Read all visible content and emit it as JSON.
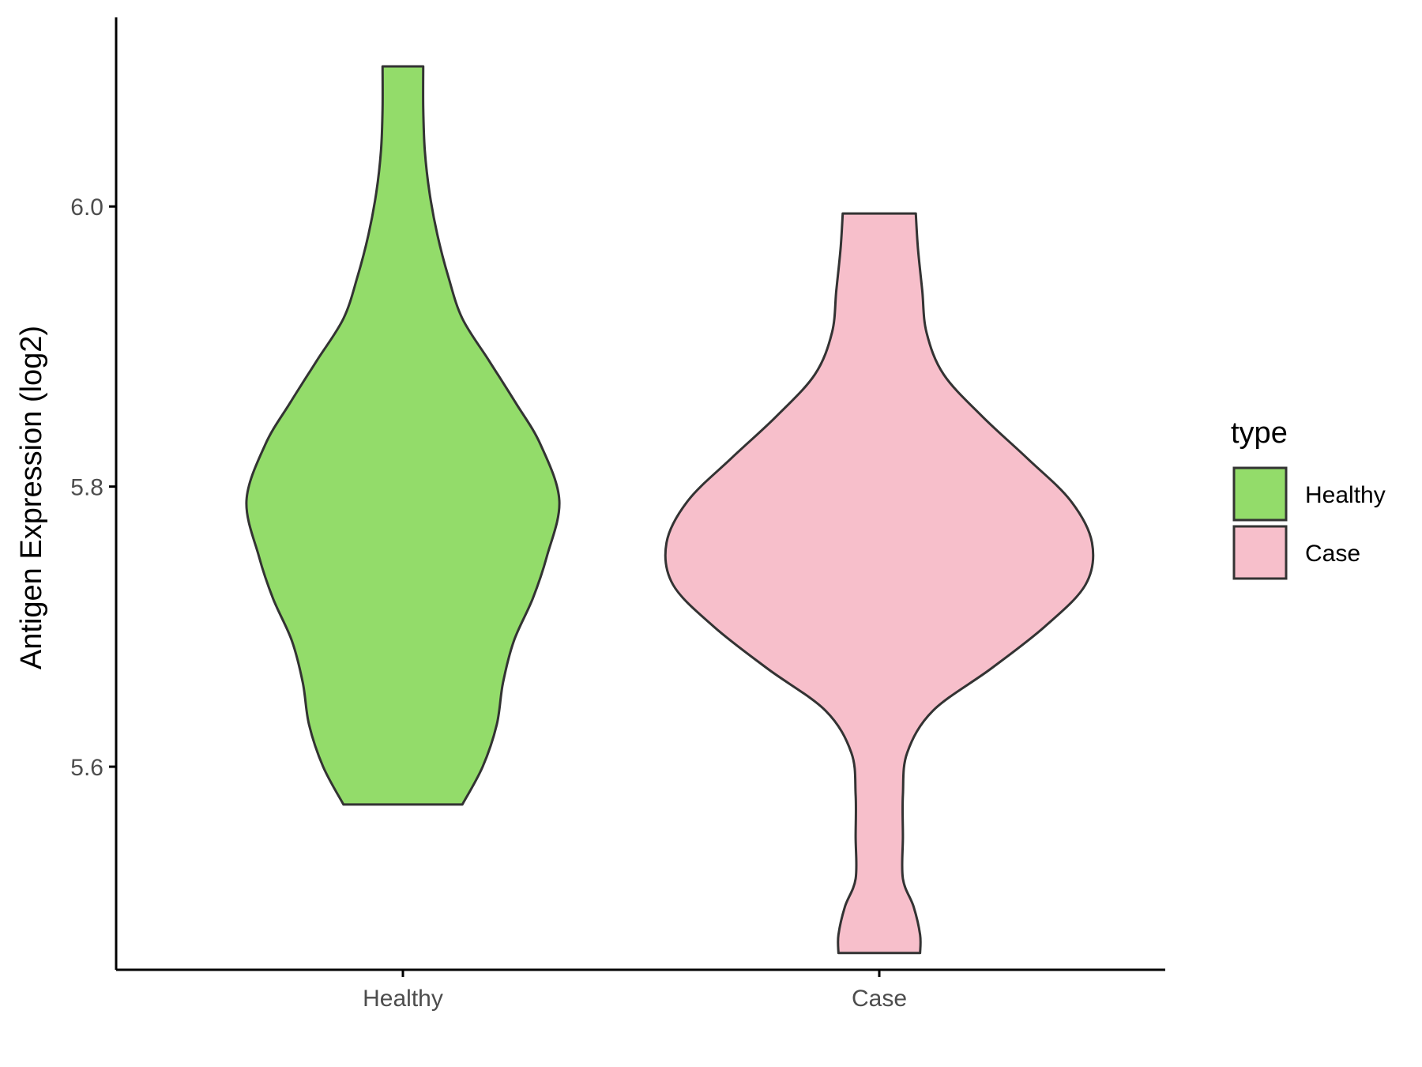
{
  "chart_data": {
    "type": "violin",
    "ylabel": "Antigen Expression (log2)",
    "xlabel": "",
    "categories": [
      "Healthy",
      "Case"
    ],
    "y_ticks": [
      "5.6",
      "5.8",
      "6.0"
    ],
    "ylim": [
      5.455,
      6.135
    ],
    "legend": {
      "title": "type",
      "position": "right",
      "items": [
        "Healthy",
        "Case"
      ]
    },
    "series": [
      {
        "name": "Healthy",
        "color": "#93DC6A",
        "min": 5.573,
        "max": 6.1,
        "density_profile": [
          [
            5.573,
            0.38
          ],
          [
            5.6,
            0.51
          ],
          [
            5.63,
            0.6
          ],
          [
            5.66,
            0.64
          ],
          [
            5.69,
            0.71
          ],
          [
            5.72,
            0.83
          ],
          [
            5.75,
            0.92
          ],
          [
            5.79,
            1.0
          ],
          [
            5.83,
            0.88
          ],
          [
            5.86,
            0.72
          ],
          [
            5.89,
            0.55
          ],
          [
            5.92,
            0.38
          ],
          [
            5.95,
            0.29
          ],
          [
            5.98,
            0.22
          ],
          [
            6.01,
            0.17
          ],
          [
            6.04,
            0.14
          ],
          [
            6.07,
            0.13
          ],
          [
            6.1,
            0.13
          ]
        ]
      },
      {
        "name": "Case",
        "color": "#F7BFCB",
        "min": 5.467,
        "max": 5.995,
        "density_profile": [
          [
            5.467,
            0.19
          ],
          [
            5.48,
            0.19
          ],
          [
            5.5,
            0.16
          ],
          [
            5.52,
            0.11
          ],
          [
            5.55,
            0.11
          ],
          [
            5.58,
            0.11
          ],
          [
            5.61,
            0.13
          ],
          [
            5.64,
            0.25
          ],
          [
            5.67,
            0.52
          ],
          [
            5.7,
            0.77
          ],
          [
            5.73,
            0.96
          ],
          [
            5.76,
            0.99
          ],
          [
            5.79,
            0.89
          ],
          [
            5.82,
            0.69
          ],
          [
            5.85,
            0.48
          ],
          [
            5.88,
            0.3
          ],
          [
            5.91,
            0.22
          ],
          [
            5.94,
            0.2
          ],
          [
            5.97,
            0.18
          ],
          [
            5.995,
            0.17
          ]
        ]
      }
    ],
    "outline_color": "#333333"
  }
}
